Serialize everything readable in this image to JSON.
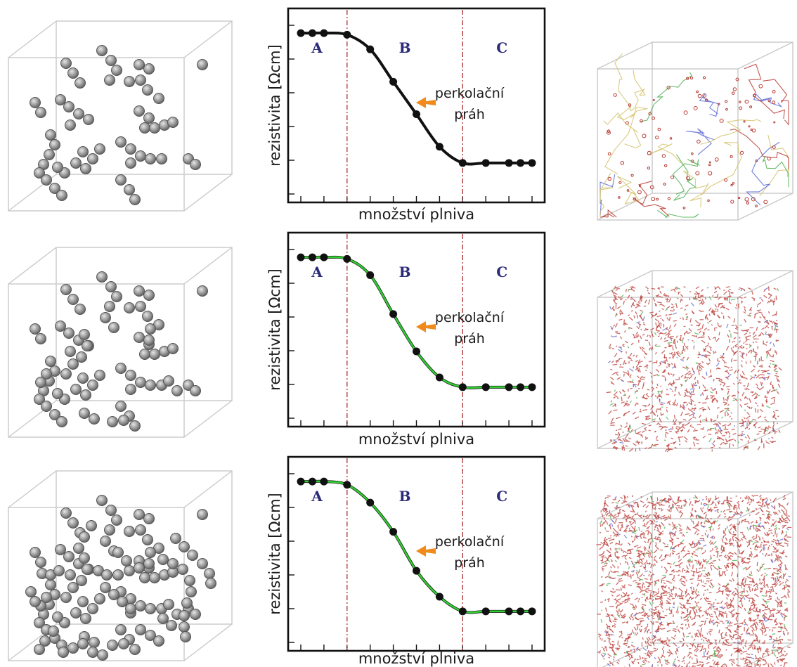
{
  "colors": {
    "sphere": "#8e8e8e",
    "sphere_stroke": "#555555",
    "cube_edge": "#c9c9c9",
    "curve_black": "#111111",
    "curve_green": "#33cc33",
    "divider": "#b0383c",
    "region_label": "#2b2b7a",
    "arrow": "#f08a1c",
    "network_red": "#b83a33",
    "network_green": "#4caf50",
    "network_blue": "#5a68d6",
    "network_yellow": "#d4c26a"
  },
  "chart_data": [
    {
      "type": "line",
      "xlabel": "množství plniva",
      "ylabel": "rezistivita [Ωcm]",
      "regions": [
        "A",
        "B",
        "C"
      ],
      "region_dividers_x": [
        2,
        7
      ],
      "annotation": [
        "perkolační",
        "práh"
      ],
      "points": [
        [
          0,
          10
        ],
        [
          0.5,
          10
        ],
        [
          1,
          10
        ],
        [
          2,
          9.9
        ],
        [
          3,
          9.0
        ],
        [
          4,
          7.0
        ],
        [
          5,
          5.0
        ],
        [
          6,
          3.0
        ],
        [
          7,
          2.0
        ],
        [
          8,
          2.0
        ],
        [
          9,
          2.0
        ],
        [
          9.5,
          2.0
        ],
        [
          10,
          2.0
        ]
      ],
      "green_overlay": false
    },
    {
      "type": "line",
      "xlabel": "množství plniva",
      "ylabel": "rezistivita [Ωcm]",
      "regions": [
        "A",
        "B",
        "C"
      ],
      "region_dividers_x": [
        2,
        7
      ],
      "annotation": [
        "perkolační",
        "práh"
      ],
      "points": [
        [
          0,
          10
        ],
        [
          0.5,
          10
        ],
        [
          1,
          10
        ],
        [
          2,
          9.9
        ],
        [
          3,
          8.9
        ],
        [
          4,
          6.5
        ],
        [
          5,
          4.2
        ],
        [
          6,
          2.6
        ],
        [
          7,
          2.0
        ],
        [
          8,
          2.0
        ],
        [
          9,
          2.0
        ],
        [
          9.5,
          2.0
        ],
        [
          10,
          2.0
        ]
      ],
      "green_overlay": true
    },
    {
      "type": "line",
      "xlabel": "množství plniva",
      "ylabel": "rezistivita [Ωcm]",
      "regions": [
        "A",
        "B",
        "C"
      ],
      "region_dividers_x": [
        2,
        7
      ],
      "annotation": [
        "perkolační",
        "práh"
      ],
      "points": [
        [
          0,
          10
        ],
        [
          0.5,
          10
        ],
        [
          1,
          10
        ],
        [
          2,
          9.8
        ],
        [
          3,
          8.7
        ],
        [
          4,
          6.9
        ],
        [
          5,
          4.5
        ],
        [
          6,
          2.9
        ],
        [
          7,
          2.0
        ],
        [
          8,
          2.0
        ],
        [
          9,
          2.0
        ],
        [
          9.5,
          2.0
        ],
        [
          10,
          2.0
        ]
      ],
      "green_overlay": true
    }
  ]
}
